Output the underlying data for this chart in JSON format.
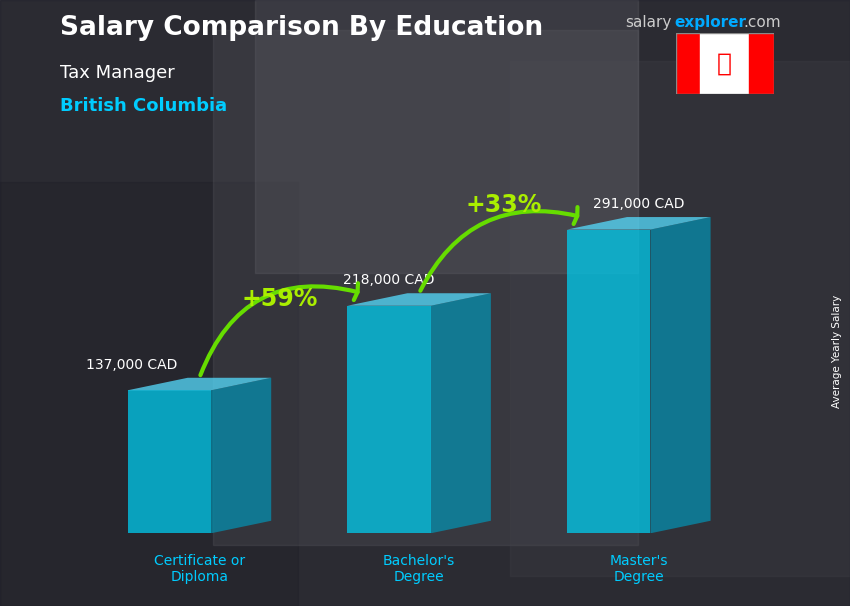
{
  "title_main": "Salary Comparison By Education",
  "subtitle1": "Tax Manager",
  "subtitle2": "British Columbia",
  "ylabel": "Average Yearly Salary",
  "categories": [
    "Certificate or\nDiploma",
    "Bachelor's\nDegree",
    "Master's\nDegree"
  ],
  "values": [
    137000,
    218000,
    291000
  ],
  "value_labels": [
    "137,000 CAD",
    "218,000 CAD",
    "291,000 CAD"
  ],
  "pct_labels": [
    "+59%",
    "+33%"
  ],
  "bar_front_color": "#00ccee",
  "bar_side_color": "#0099bb",
  "bar_top_color": "#55ddff",
  "bar_alpha": 0.75,
  "arrow_color": "#66dd00",
  "bg_color": "#555555",
  "title_color": "#ffffff",
  "subtitle1_color": "#ffffff",
  "subtitle2_color": "#00ccff",
  "value_label_color": "#ffffff",
  "pct_label_color": "#aaee00",
  "cat_label_color": "#00ccff",
  "brand_color_salary": "#cccccc",
  "brand_color_explorer": "#00aaff",
  "ylim_max": 360000,
  "x_positions": [
    0,
    1,
    2
  ],
  "bar_width": 0.38,
  "bar_depth_ratio": 0.12
}
